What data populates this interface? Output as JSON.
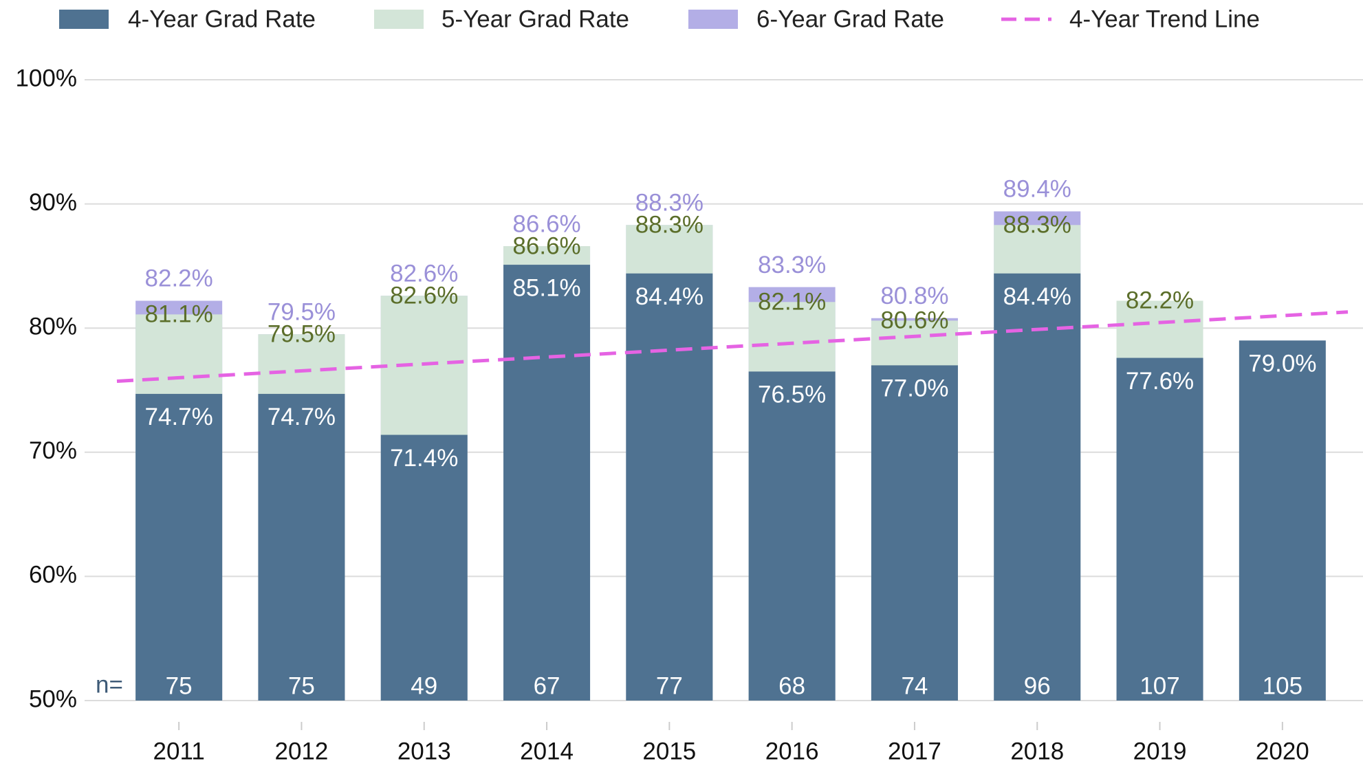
{
  "chart_data": {
    "type": "bar",
    "categories": [
      "2011",
      "2012",
      "2013",
      "2014",
      "2015",
      "2016",
      "2017",
      "2018",
      "2019",
      "2020"
    ],
    "series": [
      {
        "name": "6-Year Grad Rate",
        "color": "#b3aee6",
        "label_color": "#9a90d8",
        "values": [
          82.2,
          79.5,
          82.6,
          86.6,
          88.3,
          83.3,
          80.8,
          89.4,
          null,
          null
        ],
        "value_labels": [
          "82.2%",
          "79.5%",
          "82.6%",
          "86.6%",
          "88.3%",
          "83.3%",
          "80.8%",
          "89.4%",
          null,
          null
        ]
      },
      {
        "name": "5-Year Grad Rate",
        "color": "#d3e5d8",
        "label_color": "#5b6e2a",
        "values": [
          81.1,
          79.5,
          82.6,
          86.6,
          88.3,
          82.1,
          80.6,
          88.3,
          82.2,
          null
        ],
        "value_labels": [
          "81.1%",
          "79.5%",
          "82.6%",
          "86.6%",
          "88.3%",
          "82.1%",
          "80.6%",
          "88.3%",
          "82.2%",
          null
        ]
      },
      {
        "name": "4-Year Grad Rate",
        "color": "#4f7291",
        "label_color": "#ffffff",
        "values": [
          74.7,
          74.7,
          71.4,
          85.1,
          84.4,
          76.5,
          77.0,
          84.4,
          77.6,
          79.0
        ],
        "value_labels": [
          "74.7%",
          "74.7%",
          "71.4%",
          "85.1%",
          "84.4%",
          "76.5%",
          "77.0%",
          "84.4%",
          "77.6%",
          "79.0%"
        ]
      }
    ],
    "trend": {
      "name": "4-Year Trend Line",
      "color": "#e563e3",
      "values": [
        76.0,
        81.0
      ]
    },
    "n": {
      "label": "n=",
      "values": [
        75,
        75,
        49,
        67,
        77,
        68,
        74,
        96,
        107,
        105
      ]
    },
    "ylim": [
      50,
      100
    ],
    "yticks": [
      {
        "value": 50,
        "label": "50%"
      },
      {
        "value": 60,
        "label": "60%"
      },
      {
        "value": 70,
        "label": "70%"
      },
      {
        "value": 80,
        "label": "80%"
      },
      {
        "value": 90,
        "label": "90%"
      },
      {
        "value": 100,
        "label": "100%"
      }
    ],
    "grid": true
  }
}
